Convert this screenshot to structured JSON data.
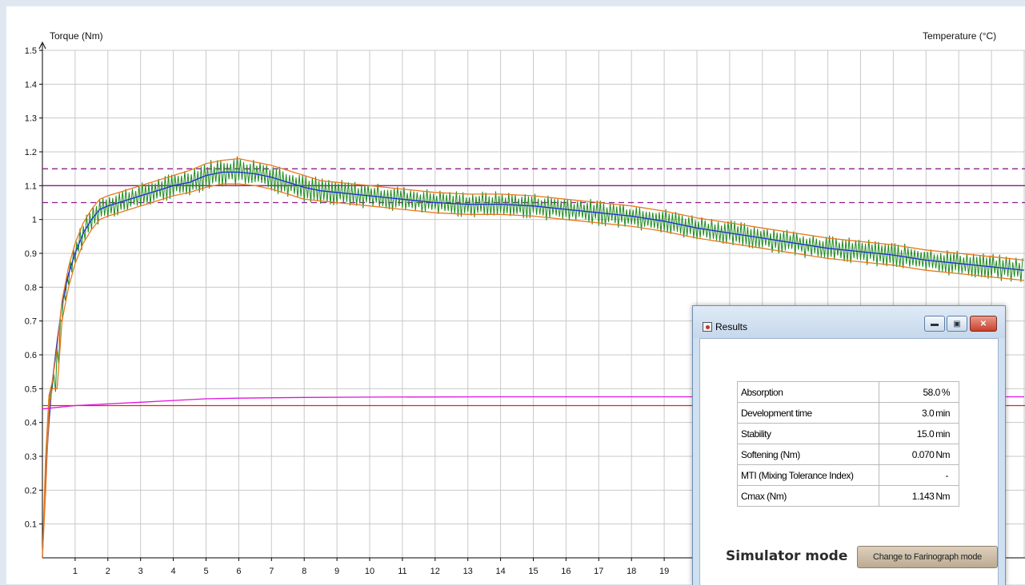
{
  "chart_data": {
    "type": "line",
    "ylabel": "Torque (Nm)",
    "y2label": "Temperature (°C)",
    "xlabel": "",
    "x_ticks": [
      "1",
      "2",
      "3",
      "4",
      "5",
      "6",
      "7",
      "8",
      "9",
      "10",
      "11",
      "12",
      "13",
      "14",
      "15",
      "16",
      "17",
      "18",
      "19"
    ],
    "y_ticks": [
      "0.1",
      "0.2",
      "0.3",
      "0.4",
      "0.5",
      "0.6",
      "0.7",
      "0.8",
      "0.9",
      "1",
      "1.1",
      "1.2",
      "1.3",
      "1.4",
      "1.5"
    ],
    "xlim": [
      0,
      30
    ],
    "ylim": [
      0,
      1.5
    ],
    "grid": true,
    "reference_lines": [
      {
        "y": 1.1,
        "style": "solid",
        "color": "#8b1c8b"
      },
      {
        "y": 1.15,
        "style": "dashed",
        "color": "#8b1c8b"
      },
      {
        "y": 1.05,
        "style": "dashed",
        "color": "#8b1c8b"
      },
      {
        "y": 0.45,
        "style": "solid",
        "color": "#e32222"
      }
    ],
    "series": [
      {
        "color": "#1a2fd6",
        "points": [
          [
            0,
            0
          ],
          [
            0.05,
            0.12
          ],
          [
            0.1,
            0.25
          ],
          [
            0.2,
            0.4
          ],
          [
            0.3,
            0.52
          ],
          [
            0.45,
            0.64
          ],
          [
            0.6,
            0.75
          ],
          [
            0.8,
            0.84
          ],
          [
            1,
            0.9
          ],
          [
            1.25,
            0.96
          ],
          [
            1.5,
            1.0
          ],
          [
            1.75,
            1.03
          ],
          [
            2,
            1.04
          ],
          [
            2.5,
            1.055
          ],
          [
            3,
            1.07
          ],
          [
            3.5,
            1.085
          ],
          [
            4,
            1.1
          ],
          [
            4.5,
            1.11
          ],
          [
            5,
            1.13
          ],
          [
            5.5,
            1.14
          ],
          [
            6,
            1.14
          ],
          [
            6.5,
            1.135
          ],
          [
            7,
            1.125
          ],
          [
            7.5,
            1.11
          ],
          [
            8,
            1.095
          ],
          [
            8.5,
            1.085
          ],
          [
            9,
            1.08
          ],
          [
            10,
            1.07
          ],
          [
            11,
            1.06
          ],
          [
            12,
            1.05
          ],
          [
            13,
            1.045
          ],
          [
            14,
            1.045
          ],
          [
            15,
            1.04
          ],
          [
            16,
            1.03
          ],
          [
            17,
            1.02
          ],
          [
            18,
            1.01
          ],
          [
            19,
            0.995
          ],
          [
            20,
            0.975
          ],
          [
            21,
            0.96
          ],
          [
            22,
            0.945
          ],
          [
            23,
            0.93
          ],
          [
            24,
            0.915
          ],
          [
            25,
            0.905
          ],
          [
            26,
            0.895
          ],
          [
            27,
            0.88
          ],
          [
            28,
            0.87
          ],
          [
            29,
            0.86
          ],
          [
            30,
            0.85
          ]
        ]
      },
      {
        "color": "#e8781e",
        "points": [
          [
            0,
            0
          ],
          [
            0.1,
            0.3
          ],
          [
            0.2,
            0.48
          ],
          [
            0.3,
            0.52
          ],
          [
            0.45,
            0.62
          ],
          [
            0.6,
            0.76
          ],
          [
            0.8,
            0.86
          ],
          [
            1,
            0.93
          ],
          [
            1.25,
            0.99
          ],
          [
            1.5,
            1.03
          ],
          [
            1.75,
            1.06
          ],
          [
            2,
            1.07
          ],
          [
            2.5,
            1.085
          ],
          [
            3,
            1.1
          ],
          [
            3.5,
            1.115
          ],
          [
            4,
            1.13
          ],
          [
            4.5,
            1.145
          ],
          [
            5,
            1.165
          ],
          [
            5.5,
            1.175
          ],
          [
            6,
            1.18
          ],
          [
            6.5,
            1.17
          ],
          [
            7,
            1.16
          ],
          [
            7.5,
            1.145
          ],
          [
            8,
            1.13
          ],
          [
            8.5,
            1.115
          ],
          [
            9,
            1.11
          ],
          [
            10,
            1.1
          ],
          [
            11,
            1.09
          ],
          [
            12,
            1.08
          ],
          [
            13,
            1.075
          ],
          [
            14,
            1.075
          ],
          [
            15,
            1.07
          ],
          [
            16,
            1.06
          ],
          [
            17,
            1.05
          ],
          [
            18,
            1.04
          ],
          [
            19,
            1.025
          ],
          [
            20,
            1.005
          ],
          [
            21,
            0.99
          ],
          [
            22,
            0.975
          ],
          [
            23,
            0.96
          ],
          [
            24,
            0.945
          ],
          [
            25,
            0.935
          ],
          [
            26,
            0.925
          ],
          [
            27,
            0.91
          ],
          [
            28,
            0.9
          ],
          [
            29,
            0.89
          ],
          [
            30,
            0.88
          ]
        ]
      },
      {
        "color": "#e8781e",
        "points": [
          [
            0,
            0
          ],
          [
            0.1,
            0.2
          ],
          [
            0.2,
            0.44
          ],
          [
            0.3,
            0.5
          ],
          [
            0.45,
            0.5
          ],
          [
            0.6,
            0.7
          ],
          [
            0.8,
            0.8
          ],
          [
            1,
            0.87
          ],
          [
            1.25,
            0.93
          ],
          [
            1.5,
            0.97
          ],
          [
            1.75,
            1.0
          ],
          [
            2,
            1.01
          ],
          [
            2.5,
            1.025
          ],
          [
            3,
            1.04
          ],
          [
            3.5,
            1.055
          ],
          [
            4,
            1.07
          ],
          [
            4.5,
            1.08
          ],
          [
            5,
            1.095
          ],
          [
            5.5,
            1.105
          ],
          [
            6,
            1.105
          ],
          [
            6.5,
            1.1
          ],
          [
            7,
            1.09
          ],
          [
            7.5,
            1.075
          ],
          [
            8,
            1.06
          ],
          [
            8.5,
            1.055
          ],
          [
            9,
            1.05
          ],
          [
            10,
            1.04
          ],
          [
            11,
            1.03
          ],
          [
            12,
            1.02
          ],
          [
            13,
            1.015
          ],
          [
            14,
            1.015
          ],
          [
            15,
            1.01
          ],
          [
            16,
            1.0
          ],
          [
            17,
            0.99
          ],
          [
            18,
            0.98
          ],
          [
            19,
            0.965
          ],
          [
            20,
            0.945
          ],
          [
            21,
            0.93
          ],
          [
            22,
            0.915
          ],
          [
            23,
            0.9
          ],
          [
            24,
            0.885
          ],
          [
            25,
            0.875
          ],
          [
            26,
            0.865
          ],
          [
            27,
            0.85
          ],
          [
            28,
            0.84
          ],
          [
            29,
            0.83
          ],
          [
            30,
            0.82
          ]
        ]
      },
      {
        "color": "#e014e0",
        "points": [
          [
            0,
            0.44
          ],
          [
            1,
            0.45
          ],
          [
            2,
            0.455
          ],
          [
            3,
            0.46
          ],
          [
            4,
            0.465
          ],
          [
            5,
            0.47
          ],
          [
            6,
            0.472
          ],
          [
            8,
            0.474
          ],
          [
            10,
            0.475
          ],
          [
            14,
            0.476
          ],
          [
            20,
            0.476
          ],
          [
            30,
            0.476
          ]
        ]
      }
    ]
  },
  "results": {
    "title": "Results",
    "rows": [
      {
        "label": "Absorption",
        "value": "58.0",
        "unit": "%"
      },
      {
        "label": "Development time",
        "value": "3.0",
        "unit": "min"
      },
      {
        "label": "Stability",
        "value": "15.0",
        "unit": "min"
      },
      {
        "label": "Softening (Nm)",
        "value": "0.070",
        "unit": "Nm"
      },
      {
        "label": "MTI (Mixing Tolerance Index)",
        "value": "-",
        "unit": ""
      },
      {
        "label": "Cmax (Nm)",
        "value": "1.143",
        "unit": "Nm"
      }
    ],
    "mode_label": "Simulator mode",
    "mode_button": "Change to Farinograph mode"
  },
  "colors": {
    "grid": "#c9c9c9",
    "window_frame": "#cfe0f1",
    "close_button": "#c8412d"
  },
  "icons": [
    "app-icon",
    "minimize-icon",
    "maximize-icon",
    "close-icon"
  ]
}
